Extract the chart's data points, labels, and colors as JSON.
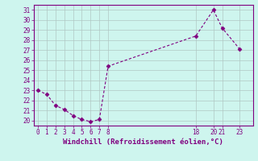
{
  "x": [
    0,
    1,
    2,
    3,
    4,
    5,
    6,
    7,
    8,
    18,
    20,
    21,
    23
  ],
  "y": [
    23,
    22.6,
    21.5,
    21.1,
    20.5,
    20.1,
    19.9,
    20.1,
    25.4,
    28.4,
    31.0,
    29.2,
    27.1
  ],
  "line_color": "#800080",
  "marker": "D",
  "marker_size": 2.5,
  "bg_color": "#cef5ee",
  "grid_color": "#b0c8c4",
  "xlabel": "Windchill (Refroidissement éolien,°C)",
  "xticks": [
    0,
    1,
    2,
    3,
    4,
    5,
    6,
    7,
    8,
    18,
    20,
    21,
    23
  ],
  "yticks": [
    20,
    21,
    22,
    23,
    24,
    25,
    26,
    27,
    28,
    29,
    30,
    31
  ],
  "ylim": [
    19.5,
    31.5
  ],
  "xlim": [
    -0.5,
    24.5
  ]
}
